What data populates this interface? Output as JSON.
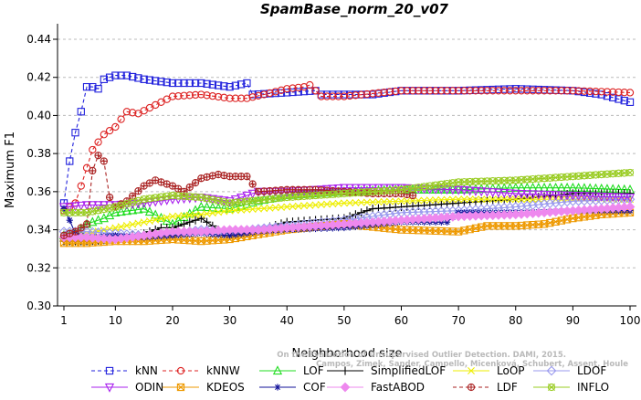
{
  "chart_data": {
    "type": "line",
    "title": "SpamBase_norm_20_v07",
    "xlabel": "Neighborhood size",
    "ylabel": "Maximum F1",
    "xlim": [
      1,
      100
    ],
    "ylim": [
      0.3,
      0.44
    ],
    "x_ticks": [
      1,
      10,
      20,
      30,
      40,
      50,
      60,
      70,
      80,
      90,
      100
    ],
    "y_ticks": [
      0.3,
      0.32,
      0.34,
      0.36,
      0.38,
      0.4,
      0.42,
      0.44
    ],
    "y_tick_labels": [
      "0.30",
      "0.32",
      "0.34",
      "0.36",
      "0.38",
      "0.40",
      "0.42",
      "0.44"
    ],
    "grid": "horizontal",
    "legend_position": "bottom",
    "watermark": [
      "Campos, Zimek, Sander, Campello, Micenková, Schubert, Assent, Houle",
      "On the Evaluation of Unsupervised Outlier Detection. DAMI, 2015."
    ],
    "series": [
      {
        "name": "kNN",
        "color": "#2222dd",
        "marker": "square",
        "dash": "dashed",
        "points": [
          [
            1,
            0.354
          ],
          [
            2,
            0.376
          ],
          [
            3,
            0.391
          ],
          [
            4,
            0.402
          ],
          [
            5,
            0.415
          ],
          [
            6,
            0.415
          ],
          [
            7,
            0.414
          ],
          [
            8,
            0.419
          ],
          [
            10,
            0.421
          ],
          [
            12,
            0.421
          ],
          [
            15,
            0.419
          ],
          [
            20,
            0.417
          ],
          [
            25,
            0.417
          ],
          [
            30,
            0.415
          ],
          [
            33,
            0.417
          ],
          [
            34,
            0.411
          ],
          [
            40,
            0.412
          ],
          [
            45,
            0.413
          ],
          [
            46,
            0.411
          ],
          [
            50,
            0.411
          ],
          [
            55,
            0.411
          ],
          [
            60,
            0.413
          ],
          [
            70,
            0.413
          ],
          [
            80,
            0.414
          ],
          [
            90,
            0.413
          ],
          [
            95,
            0.411
          ],
          [
            100,
            0.407
          ]
        ]
      },
      {
        "name": "kNNW",
        "color": "#dd2222",
        "marker": "circle",
        "dash": "dashed",
        "points": [
          [
            1,
            0.35
          ],
          [
            3,
            0.354
          ],
          [
            4,
            0.363
          ],
          [
            6,
            0.382
          ],
          [
            8,
            0.39
          ],
          [
            10,
            0.394
          ],
          [
            11,
            0.398
          ],
          [
            12,
            0.402
          ],
          [
            14,
            0.401
          ],
          [
            16,
            0.404
          ],
          [
            20,
            0.41
          ],
          [
            25,
            0.411
          ],
          [
            30,
            0.409
          ],
          [
            33,
            0.409
          ],
          [
            36,
            0.411
          ],
          [
            40,
            0.414
          ],
          [
            43,
            0.415
          ],
          [
            44,
            0.416
          ],
          [
            46,
            0.41
          ],
          [
            50,
            0.41
          ],
          [
            60,
            0.413
          ],
          [
            70,
            0.413
          ],
          [
            80,
            0.413
          ],
          [
            90,
            0.413
          ],
          [
            100,
            0.412
          ]
        ]
      },
      {
        "name": "LOF",
        "color": "#22dd22",
        "marker": "triangle-up",
        "dash": "solid",
        "points": [
          [
            1,
            0.337
          ],
          [
            3,
            0.338
          ],
          [
            5,
            0.343
          ],
          [
            8,
            0.346
          ],
          [
            10,
            0.349
          ],
          [
            15,
            0.351
          ],
          [
            20,
            0.343
          ],
          [
            25,
            0.352
          ],
          [
            30,
            0.351
          ],
          [
            35,
            0.355
          ],
          [
            40,
            0.358
          ],
          [
            50,
            0.36
          ],
          [
            60,
            0.361
          ],
          [
            70,
            0.361
          ],
          [
            80,
            0.362
          ],
          [
            90,
            0.362
          ],
          [
            100,
            0.361
          ]
        ]
      },
      {
        "name": "SimplifiedLOF",
        "color": "#000000",
        "marker": "plus",
        "dash": "solid",
        "points": [
          [
            1,
            0.334
          ],
          [
            5,
            0.334
          ],
          [
            10,
            0.335
          ],
          [
            15,
            0.338
          ],
          [
            18,
            0.341
          ],
          [
            20,
            0.341
          ],
          [
            25,
            0.346
          ],
          [
            28,
            0.34
          ],
          [
            30,
            0.338
          ],
          [
            35,
            0.34
          ],
          [
            40,
            0.344
          ],
          [
            45,
            0.345
          ],
          [
            50,
            0.346
          ],
          [
            55,
            0.351
          ],
          [
            60,
            0.352
          ],
          [
            70,
            0.354
          ],
          [
            80,
            0.356
          ],
          [
            90,
            0.359
          ],
          [
            100,
            0.359
          ]
        ]
      },
      {
        "name": "LoOP",
        "color": "#eeee00",
        "marker": "cross",
        "dash": "solid",
        "points": [
          [
            1,
            0.336
          ],
          [
            5,
            0.338
          ],
          [
            10,
            0.341
          ],
          [
            15,
            0.344
          ],
          [
            20,
            0.347
          ],
          [
            25,
            0.348
          ],
          [
            30,
            0.35
          ],
          [
            40,
            0.352
          ],
          [
            50,
            0.354
          ],
          [
            60,
            0.355
          ],
          [
            70,
            0.356
          ],
          [
            80,
            0.356
          ],
          [
            90,
            0.356
          ],
          [
            100,
            0.356
          ]
        ]
      },
      {
        "name": "LDOF",
        "color": "#9999ee",
        "marker": "diamond",
        "dash": "solid",
        "points": [
          [
            1,
            0.339
          ],
          [
            5,
            0.339
          ],
          [
            10,
            0.338
          ],
          [
            15,
            0.337
          ],
          [
            20,
            0.338
          ],
          [
            25,
            0.34
          ],
          [
            30,
            0.339
          ],
          [
            40,
            0.342
          ],
          [
            50,
            0.345
          ],
          [
            60,
            0.349
          ],
          [
            70,
            0.35
          ],
          [
            80,
            0.352
          ],
          [
            90,
            0.355
          ],
          [
            100,
            0.356
          ]
        ]
      },
      {
        "name": "ODIN",
        "color": "#aa22ee",
        "marker": "triangle-down",
        "dash": "solid",
        "points": [
          [
            1,
            0.352
          ],
          [
            5,
            0.353
          ],
          [
            10,
            0.353
          ],
          [
            15,
            0.354
          ],
          [
            20,
            0.356
          ],
          [
            25,
            0.357
          ],
          [
            30,
            0.355
          ],
          [
            35,
            0.36
          ],
          [
            40,
            0.36
          ],
          [
            50,
            0.362
          ],
          [
            60,
            0.362
          ],
          [
            70,
            0.361
          ],
          [
            80,
            0.359
          ],
          [
            90,
            0.358
          ],
          [
            100,
            0.357
          ]
        ]
      },
      {
        "name": "KDEOS",
        "color": "#ee9900",
        "marker": "x-square",
        "dash": "solid",
        "points": [
          [
            1,
            0.333
          ],
          [
            5,
            0.333
          ],
          [
            10,
            0.334
          ],
          [
            15,
            0.334
          ],
          [
            20,
            0.335
          ],
          [
            25,
            0.334
          ],
          [
            30,
            0.335
          ],
          [
            40,
            0.34
          ],
          [
            50,
            0.343
          ],
          [
            60,
            0.34
          ],
          [
            70,
            0.339
          ],
          [
            75,
            0.342
          ],
          [
            80,
            0.342
          ],
          [
            85,
            0.343
          ],
          [
            90,
            0.346
          ],
          [
            95,
            0.348
          ],
          [
            100,
            0.349
          ]
        ]
      },
      {
        "name": "COF",
        "color": "#111199",
        "marker": "asterisk",
        "dash": "solid",
        "points": [
          [
            1,
            0.351
          ],
          [
            2,
            0.345
          ],
          [
            3,
            0.338
          ],
          [
            5,
            0.336
          ],
          [
            10,
            0.337
          ],
          [
            15,
            0.336
          ],
          [
            20,
            0.337
          ],
          [
            25,
            0.338
          ],
          [
            30,
            0.337
          ],
          [
            35,
            0.339
          ],
          [
            40,
            0.34
          ],
          [
            50,
            0.341
          ],
          [
            60,
            0.344
          ],
          [
            68,
            0.344
          ],
          [
            70,
            0.349
          ],
          [
            80,
            0.349
          ],
          [
            90,
            0.35
          ],
          [
            100,
            0.35
          ]
        ]
      },
      {
        "name": "FastABOD",
        "color": "#ee88ee",
        "marker": "diamond-filled",
        "dash": "solid",
        "points": [
          [
            1,
            0.336
          ],
          [
            5,
            0.336
          ],
          [
            10,
            0.335
          ],
          [
            15,
            0.337
          ],
          [
            20,
            0.339
          ],
          [
            25,
            0.339
          ],
          [
            30,
            0.34
          ],
          [
            35,
            0.34
          ],
          [
            40,
            0.341
          ],
          [
            50,
            0.343
          ],
          [
            60,
            0.345
          ],
          [
            70,
            0.347
          ],
          [
            80,
            0.348
          ],
          [
            90,
            0.35
          ],
          [
            100,
            0.352
          ]
        ]
      },
      {
        "name": "LDF",
        "color": "#aa2222",
        "marker": "circle-plus",
        "dash": "dashed",
        "points": [
          [
            1,
            0.337
          ],
          [
            3,
            0.339
          ],
          [
            5,
            0.343
          ],
          [
            6,
            0.371
          ],
          [
            7,
            0.379
          ],
          [
            8,
            0.376
          ],
          [
            9,
            0.357
          ],
          [
            10,
            0.352
          ],
          [
            12,
            0.355
          ],
          [
            15,
            0.363
          ],
          [
            17,
            0.366
          ],
          [
            20,
            0.363
          ],
          [
            22,
            0.36
          ],
          [
            25,
            0.367
          ],
          [
            28,
            0.369
          ],
          [
            30,
            0.368
          ],
          [
            33,
            0.368
          ],
          [
            35,
            0.36
          ],
          [
            40,
            0.361
          ],
          [
            45,
            0.361
          ],
          [
            50,
            0.36
          ],
          [
            55,
            0.359
          ],
          [
            60,
            0.359
          ],
          [
            62,
            0.358
          ]
        ]
      },
      {
        "name": "INFLO",
        "color": "#99cc22",
        "marker": "x-circle",
        "dash": "solid",
        "points": [
          [
            1,
            0.349
          ],
          [
            5,
            0.349
          ],
          [
            10,
            0.352
          ],
          [
            15,
            0.356
          ],
          [
            20,
            0.358
          ],
          [
            25,
            0.357
          ],
          [
            30,
            0.354
          ],
          [
            40,
            0.357
          ],
          [
            50,
            0.359
          ],
          [
            60,
            0.361
          ],
          [
            70,
            0.365
          ],
          [
            80,
            0.366
          ],
          [
            90,
            0.368
          ],
          [
            100,
            0.37
          ]
        ]
      }
    ]
  }
}
